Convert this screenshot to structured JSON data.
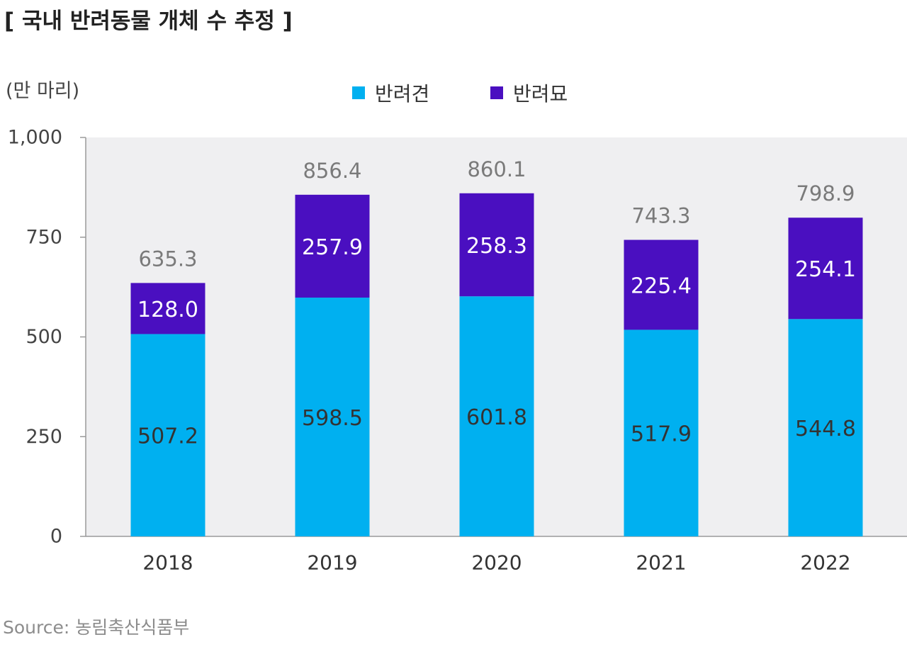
{
  "title": "[ 국내 반려동물 개체 수 추정 ]",
  "unit_label": "(만 마리)",
  "source": "Source: 농림축산식품부",
  "chart_data": {
    "type": "bar",
    "stacked": true,
    "categories": [
      "2018",
      "2019",
      "2020",
      "2021",
      "2022"
    ],
    "series": [
      {
        "name": "반려견",
        "color": "#00B0F0",
        "values": [
          507.2,
          598.5,
          601.8,
          517.9,
          544.8
        ],
        "labels": [
          "507.2",
          "598.5",
          "601.8",
          "517.9",
          "544.8"
        ],
        "label_color": "#333333"
      },
      {
        "name": "반려묘",
        "color": "#4A0FC0",
        "values": [
          128.0,
          257.9,
          258.3,
          225.4,
          254.1
        ],
        "labels": [
          "128.0",
          "257.9",
          "258.3",
          "225.4",
          "254.1"
        ],
        "label_color": "#ffffff"
      }
    ],
    "totals": [
      635.3,
      856.4,
      860.1,
      743.3,
      798.9
    ],
    "total_labels": [
      "635.3",
      "856.4",
      "860.1",
      "743.3",
      "798.9"
    ],
    "ylim": [
      0,
      1000
    ],
    "yticks": [
      0,
      250,
      500,
      750,
      1000
    ],
    "ytick_labels": [
      "0",
      "250",
      "500",
      "750",
      "1,000"
    ],
    "plot_background": "#EFEFF1",
    "grid": false,
    "legend_position": "top"
  }
}
